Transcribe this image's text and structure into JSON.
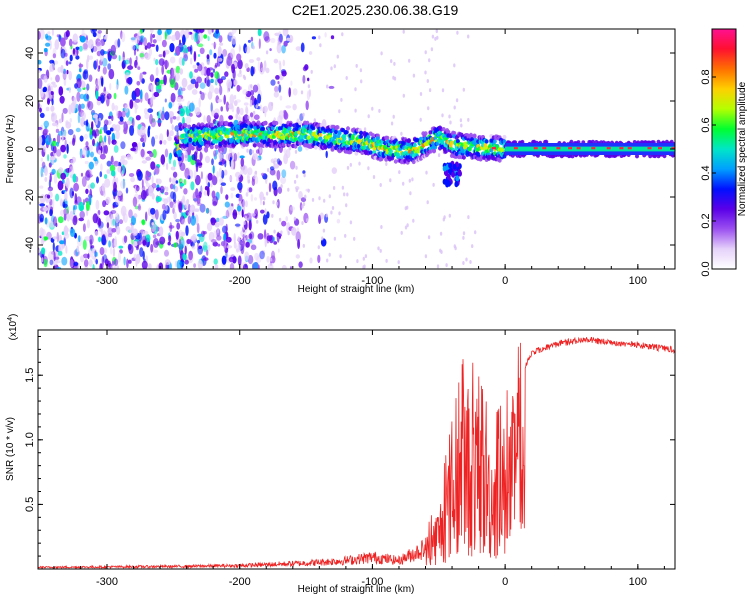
{
  "page_title": "C2E1.2025.230.06.38.G19",
  "chart_data": [
    {
      "type": "heatmap",
      "xlabel": "Height of straight line (km)",
      "ylabel": "Frequency (Hz)",
      "xlim": [
        -352,
        128
      ],
      "ylim": [
        -50,
        50
      ],
      "x_ticks": [
        -300,
        -200,
        -100,
        0,
        100
      ],
      "y_ticks": [
        -40,
        -20,
        0,
        20,
        40
      ],
      "colorbar": {
        "label": "Normalized spectral amplitude",
        "range": [
          0.0,
          1.0
        ],
        "ticks": [
          "0.0",
          "0.2",
          "0.4",
          "0.6",
          "0.8"
        ],
        "colormap": [
          "#ffffff",
          "#e6d2fa",
          "#9b50f0",
          "#5a00e8",
          "#0010ff",
          "#00a0ff",
          "#00e6c8",
          "#00ff30",
          "#b4ff00",
          "#ffd000",
          "#ff7000",
          "#ff1030",
          "#ff1090"
        ]
      },
      "ridge": {
        "description_points": [
          {
            "x": -245,
            "y": 5
          },
          {
            "x": -210,
            "y": 6
          },
          {
            "x": -150,
            "y": 6
          },
          {
            "x": -110,
            "y": 3
          },
          {
            "x": -90,
            "y": 0
          },
          {
            "x": -70,
            "y": -1
          },
          {
            "x": -50,
            "y": 5
          },
          {
            "x": -40,
            "y": 2
          },
          {
            "x": -30,
            "y": 1
          },
          {
            "x": 0,
            "y": 0
          },
          {
            "x": 128,
            "y": 0
          }
        ]
      }
    },
    {
      "type": "line",
      "xlabel": "Height of straight line (km)",
      "ylabel": "SNR (10 * v/v)",
      "y_scale_note": "(x10",
      "y_scale_exponent": "4",
      "xlim": [
        -352,
        128
      ],
      "ylim": [
        0.0,
        1.85
      ],
      "x_ticks": [
        -300,
        -200,
        -100,
        0,
        100
      ],
      "y_ticks": [
        0.5,
        1.0,
        1.5
      ],
      "y_tick_labels": [
        "0.5",
        "1.0",
        "1.5"
      ],
      "series": [
        {
          "color": "#ee2222",
          "envelope": [
            {
              "x": -352,
              "y": 0.02
            },
            {
              "x": -250,
              "y": 0.03
            },
            {
              "x": -200,
              "y": 0.04
            },
            {
              "x": -150,
              "y": 0.07
            },
            {
              "x": -120,
              "y": 0.1
            },
            {
              "x": -100,
              "y": 0.14
            },
            {
              "x": -80,
              "y": 0.1
            },
            {
              "x": -60,
              "y": 0.25
            },
            {
              "x": -50,
              "y": 0.5
            },
            {
              "x": -40,
              "y": 1.0
            },
            {
              "x": -30,
              "y": 1.5
            },
            {
              "x": -20,
              "y": 1.3
            },
            {
              "x": -10,
              "y": 1.0
            },
            {
              "x": 0,
              "y": 1.15
            },
            {
              "x": 10,
              "y": 1.5
            },
            {
              "x": 20,
              "y": 1.7
            },
            {
              "x": 40,
              "y": 1.77
            },
            {
              "x": 60,
              "y": 1.8
            },
            {
              "x": 80,
              "y": 1.78
            },
            {
              "x": 100,
              "y": 1.76
            },
            {
              "x": 128,
              "y": 1.72
            }
          ]
        }
      ]
    }
  ]
}
